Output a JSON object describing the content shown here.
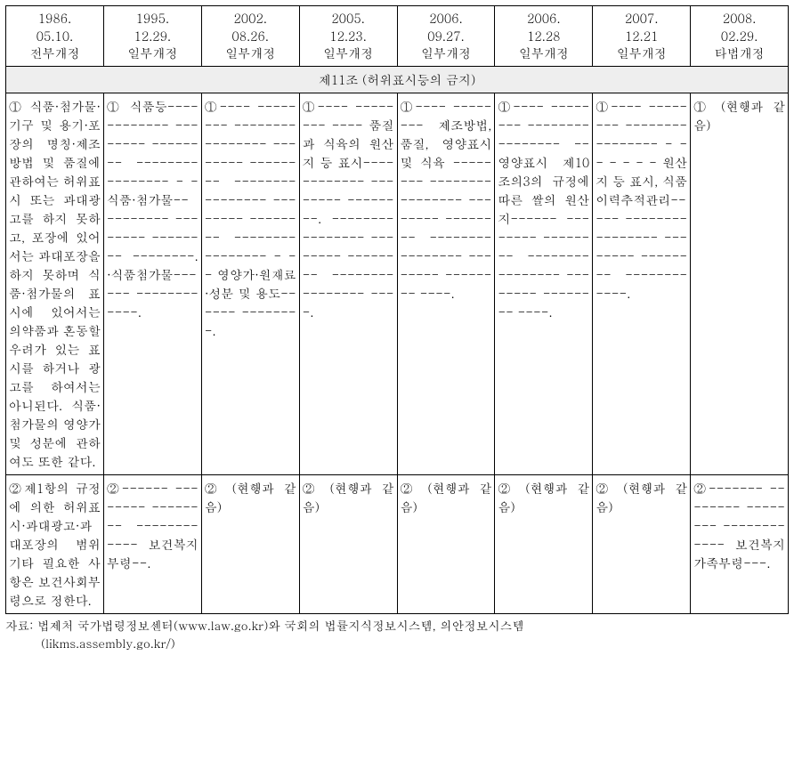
{
  "headers": [
    "1986.\n05.10.\n전부개정",
    "1995.\n12.29.\n일부개정",
    "2002.\n08.26.\n일부개정",
    "2005.\n12.23.\n일부개정",
    "2006.\n09.27.\n일부개정",
    "2006.\n12.28\n일부개정",
    "2007.\n12.21\n일부개정",
    "2008.\n02.29.\n타법개정"
  ],
  "section_title": "제11조 (허위표시등의 금지)",
  "row1": [
    "①식품·첨가물·기구 및 용기·포장의 명칭·제조방법 및 품질에 관하여는 허위표시 또는 과대광고를 하지 못하고, 포장에 있어서는 과대포장을 하지 못하며 식품·첨가물의 표시에 있어서는 의약품과 혼동할 우려가 있는 표시를 하거나 광고를 하여서는 아니된다. 식품·첨가물의 영양가 및 성분에 관하여도 또한 같다.",
    "①    식품등---- -------- -------- -------- -------- -------- - - 식품·첨가물-- -------- -------- -------- --------. ·식품첨가물------ -------- ----.",
    "①---- -------- -------- -------- -------- -------- -------- -------- -------- -------- -------- -------- - - - 영양가·원재료·성분 및 용도------ --------.",
    "①---- -------- ---- 품질과 식육의 원산지 등 표시---- -------- -------- --------. -------- -------- -------- -------- -------- -------- ----.",
    "①---- -------- 제조방법, 품질, 영양표시 및 식육 -------- -------- -------- -------- -------- -------- -------- -------- -------- ----.",
    "①---- -------- -------- -------- -- 영양표시 제10조의3의 규정에 따른 쌀의 원산지------ -------- -------- -------- -------- -------- -------- ----.",
    "①---- -------- -------- -------- - - - - - - - 원산지 등 표시, 식품이력추적관리----- -------- -------- -------- -------- -------- ----.",
    "① (현행과 같음)"
  ],
  "row2": [
    "②제1항의 규정에 의한 허위표시·과대광고·과대포장의 범위 기타 필요한 사항은 보건사회부령으로 정한다.",
    "②------ -------- -------- -------- ---- 보건복지부령--.",
    "② (현행과 같음)",
    "② (현행과 같음)",
    "② (현행과 같음)",
    "② (현행과 같음)",
    "② (현행과 같음)",
    "②------- -------- -------- -------- ---- 보건복지가족부령---."
  ],
  "source_line1": "자료: 법제처 국가법령정보센터(www.law.go.kr)와 국회의 법률지식정보시스템, 의안정보시스템",
  "source_line2": "(likms.assembly.go.kr/)"
}
